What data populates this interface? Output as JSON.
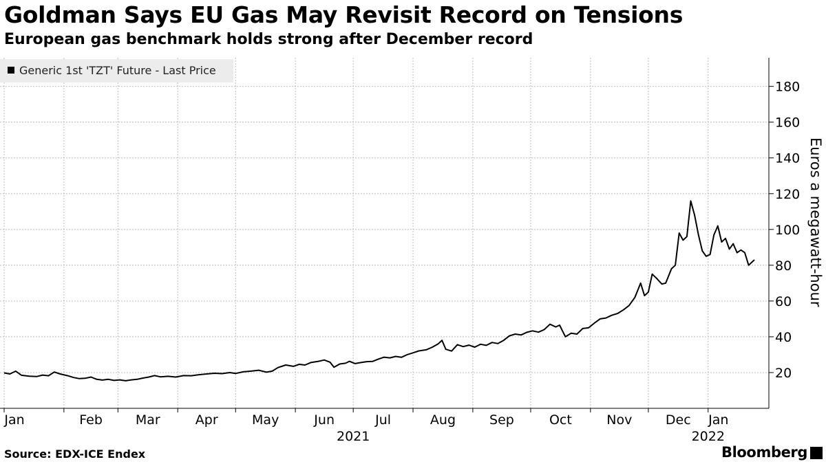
{
  "header": {
    "title": "Goldman Says EU Gas May Revisit Record on Tensions",
    "subtitle": "European gas benchmark holds strong after December record"
  },
  "footer": {
    "source": "Source: EDX-ICE Endex",
    "brand": "Bloomberg"
  },
  "colors": {
    "line": "#000000",
    "grid": "#bfbfbf",
    "legend_bg": "#ececec"
  },
  "chart_data": {
    "type": "line",
    "title": "",
    "xlabel": "",
    "ylabel": "Euros a megawatt-hour",
    "legend": {
      "placement": "top-left",
      "entries": [
        "Generic 1st 'TZT' Future - Last Price"
      ]
    },
    "grid": true,
    "y_ticks": [
      20,
      40,
      60,
      80,
      100,
      120,
      140,
      160,
      180
    ],
    "ylim": [
      0,
      196
    ],
    "x_tick_labels": [
      "Jan",
      "Feb",
      "Mar",
      "Apr",
      "May",
      "Jun",
      "Jul",
      "Aug",
      "Sep",
      "Oct",
      "Nov",
      "Dec",
      "Jan"
    ],
    "x_tick_dates": [
      "2021-01-01",
      "2021-02-01",
      "2021-03-01",
      "2021-04-01",
      "2021-05-01",
      "2021-06-01",
      "2021-07-01",
      "2021-08-01",
      "2021-09-01",
      "2021-10-01",
      "2021-11-01",
      "2021-12-01",
      "2022-01-01"
    ],
    "year_labels": [
      {
        "label": "2021",
        "date": "2021-07-01"
      },
      {
        "label": "2022",
        "date": "2022-01-01"
      }
    ],
    "xlim": [
      "2021-01-01",
      "2022-01-25"
    ],
    "series": [
      {
        "name": "Generic 1st 'TZT' Future - Last Price",
        "points": [
          [
            "2021-01-01",
            19.8
          ],
          [
            "2021-01-04",
            19.2
          ],
          [
            "2021-01-07",
            20.8
          ],
          [
            "2021-01-10",
            18.5
          ],
          [
            "2021-01-14",
            18.0
          ],
          [
            "2021-01-18",
            17.8
          ],
          [
            "2021-01-21",
            18.6
          ],
          [
            "2021-01-24",
            18.2
          ],
          [
            "2021-01-27",
            20.3
          ],
          [
            "2021-01-30",
            19.2
          ],
          [
            "2021-02-03",
            18.2
          ],
          [
            "2021-02-06",
            17.2
          ],
          [
            "2021-02-09",
            16.6
          ],
          [
            "2021-02-12",
            16.8
          ],
          [
            "2021-02-15",
            17.5
          ],
          [
            "2021-02-18",
            16.2
          ],
          [
            "2021-02-21",
            15.8
          ],
          [
            "2021-02-24",
            16.2
          ],
          [
            "2021-02-27",
            15.6
          ],
          [
            "2021-03-02",
            15.9
          ],
          [
            "2021-03-05",
            15.4
          ],
          [
            "2021-03-08",
            15.9
          ],
          [
            "2021-03-11",
            16.2
          ],
          [
            "2021-03-14",
            16.9
          ],
          [
            "2021-03-17",
            17.5
          ],
          [
            "2021-03-20",
            18.3
          ],
          [
            "2021-03-23",
            17.6
          ],
          [
            "2021-03-27",
            17.9
          ],
          [
            "2021-03-31",
            17.5
          ],
          [
            "2021-04-04",
            18.3
          ],
          [
            "2021-04-08",
            18.2
          ],
          [
            "2021-04-12",
            18.8
          ],
          [
            "2021-04-16",
            19.2
          ],
          [
            "2021-04-20",
            19.6
          ],
          [
            "2021-04-24",
            19.4
          ],
          [
            "2021-04-28",
            20.0
          ],
          [
            "2021-05-01",
            19.5
          ],
          [
            "2021-05-05",
            20.4
          ],
          [
            "2021-05-09",
            20.8
          ],
          [
            "2021-05-13",
            21.3
          ],
          [
            "2021-05-17",
            20.2
          ],
          [
            "2021-05-20",
            20.8
          ],
          [
            "2021-05-23",
            22.8
          ],
          [
            "2021-05-27",
            24.2
          ],
          [
            "2021-05-31",
            23.5
          ],
          [
            "2021-06-03",
            24.6
          ],
          [
            "2021-06-06",
            24.2
          ],
          [
            "2021-06-09",
            25.6
          ],
          [
            "2021-06-13",
            26.3
          ],
          [
            "2021-06-16",
            27.0
          ],
          [
            "2021-06-19",
            25.8
          ],
          [
            "2021-06-21",
            23.0
          ],
          [
            "2021-06-24",
            24.8
          ],
          [
            "2021-06-27",
            25.2
          ],
          [
            "2021-06-29",
            26.3
          ],
          [
            "2021-07-02",
            25.0
          ],
          [
            "2021-07-05",
            25.6
          ],
          [
            "2021-07-08",
            26.1
          ],
          [
            "2021-07-11",
            26.2
          ],
          [
            "2021-07-14",
            27.5
          ],
          [
            "2021-07-17",
            28.6
          ],
          [
            "2021-07-20",
            28.2
          ],
          [
            "2021-07-23",
            29.0
          ],
          [
            "2021-07-26",
            28.5
          ],
          [
            "2021-07-29",
            30.0
          ],
          [
            "2021-08-01",
            31.0
          ],
          [
            "2021-08-04",
            32.1
          ],
          [
            "2021-08-08",
            32.8
          ],
          [
            "2021-08-11",
            34.2
          ],
          [
            "2021-08-14",
            36.0
          ],
          [
            "2021-08-16",
            38.0
          ],
          [
            "2021-08-18",
            33.0
          ],
          [
            "2021-08-21",
            32.0
          ],
          [
            "2021-08-24",
            35.6
          ],
          [
            "2021-08-27",
            34.5
          ],
          [
            "2021-08-30",
            35.3
          ],
          [
            "2021-09-02",
            34.2
          ],
          [
            "2021-09-05",
            35.8
          ],
          [
            "2021-09-08",
            35.2
          ],
          [
            "2021-09-11",
            36.8
          ],
          [
            "2021-09-14",
            36.2
          ],
          [
            "2021-09-17",
            38.0
          ],
          [
            "2021-09-20",
            40.5
          ],
          [
            "2021-09-23",
            41.5
          ],
          [
            "2021-09-26",
            41.0
          ],
          [
            "2021-09-29",
            42.5
          ],
          [
            "2021-10-02",
            43.3
          ],
          [
            "2021-10-05",
            42.6
          ],
          [
            "2021-10-08",
            44.0
          ],
          [
            "2021-10-11",
            47.0
          ],
          [
            "2021-10-14",
            45.5
          ],
          [
            "2021-10-16",
            46.5
          ],
          [
            "2021-10-19",
            40.0
          ],
          [
            "2021-10-22",
            42.0
          ],
          [
            "2021-10-25",
            41.5
          ],
          [
            "2021-10-28",
            44.6
          ],
          [
            "2021-10-31",
            45.0
          ],
          [
            "2021-11-03",
            47.6
          ],
          [
            "2021-11-06",
            50.0
          ],
          [
            "2021-11-09",
            50.5
          ],
          [
            "2021-11-12",
            52.0
          ],
          [
            "2021-11-15",
            53.0
          ],
          [
            "2021-11-18",
            55.0
          ],
          [
            "2021-11-21",
            57.5
          ],
          [
            "2021-11-24",
            62.0
          ],
          [
            "2021-11-27",
            70.0
          ],
          [
            "2021-11-29",
            63.0
          ],
          [
            "2021-12-01",
            65.0
          ],
          [
            "2021-12-03",
            75.0
          ],
          [
            "2021-12-05",
            73.0
          ],
          [
            "2021-12-08",
            69.5
          ],
          [
            "2021-12-10",
            70.0
          ],
          [
            "2021-12-13",
            78.0
          ],
          [
            "2021-12-15",
            80.0
          ],
          [
            "2021-12-17",
            98.0
          ],
          [
            "2021-12-19",
            94.0
          ],
          [
            "2021-12-21",
            96.0
          ],
          [
            "2021-12-23",
            116.0
          ],
          [
            "2021-12-25",
            108.0
          ],
          [
            "2021-12-27",
            97.0
          ],
          [
            "2021-12-29",
            88.0
          ],
          [
            "2021-12-31",
            85.0
          ],
          [
            "2022-01-02",
            86.0
          ],
          [
            "2022-01-04",
            97.0
          ],
          [
            "2022-01-06",
            102.0
          ],
          [
            "2022-01-08",
            93.0
          ],
          [
            "2022-01-10",
            95.0
          ],
          [
            "2022-01-12",
            89.0
          ],
          [
            "2022-01-14",
            92.0
          ],
          [
            "2022-01-16",
            87.0
          ],
          [
            "2022-01-18",
            88.5
          ],
          [
            "2022-01-20",
            87.0
          ],
          [
            "2022-01-22",
            80.0
          ],
          [
            "2022-01-25",
            83.0
          ]
        ]
      }
    ]
  }
}
